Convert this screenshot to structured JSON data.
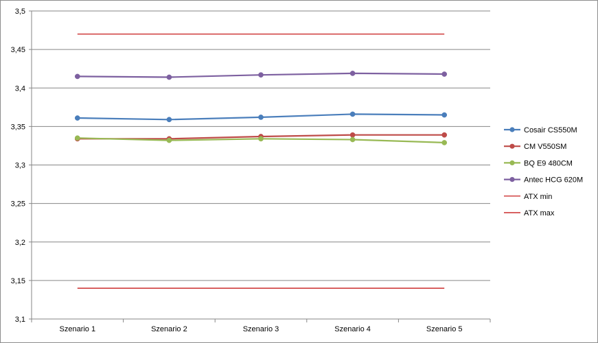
{
  "chart_data": {
    "type": "line",
    "title": "",
    "xlabel": "",
    "ylabel": "",
    "categories": [
      "Szenario 1",
      "Szenario 2",
      "Szenario 3",
      "Szenario 4",
      "Szenario 5"
    ],
    "ylim": [
      3.1,
      3.5
    ],
    "yticks": [
      3.1,
      3.15,
      3.2,
      3.25,
      3.3,
      3.35,
      3.4,
      3.45,
      3.5
    ],
    "ytick_labels": [
      "3,1",
      "3,15",
      "3,2",
      "3,25",
      "3,3",
      "3,35",
      "3,4",
      "3,45",
      "3,5"
    ],
    "grid": "horizontal",
    "legend_position": "right",
    "series": [
      {
        "name": "Cosair CS550M",
        "values": [
          3.361,
          3.359,
          3.362,
          3.366,
          3.365
        ],
        "color": "#4a7ebb",
        "markers": true
      },
      {
        "name": "CM V550SM",
        "values": [
          3.334,
          3.334,
          3.337,
          3.339,
          3.339
        ],
        "color": "#be4b48",
        "markers": true
      },
      {
        "name": "BQ E9 480CM",
        "values": [
          3.335,
          3.332,
          3.334,
          3.333,
          3.329
        ],
        "color": "#98b954",
        "markers": true
      },
      {
        "name": "Antec HCG 620M",
        "values": [
          3.415,
          3.414,
          3.417,
          3.419,
          3.418
        ],
        "color": "#7d60a0",
        "markers": true
      },
      {
        "name": "ATX min",
        "values": [
          3.14,
          3.14,
          3.14,
          3.14,
          3.14
        ],
        "color": "#c00000",
        "markers": false
      },
      {
        "name": "ATX max",
        "values": [
          3.47,
          3.47,
          3.47,
          3.47,
          3.47
        ],
        "color": "#c00000",
        "markers": false
      }
    ]
  }
}
